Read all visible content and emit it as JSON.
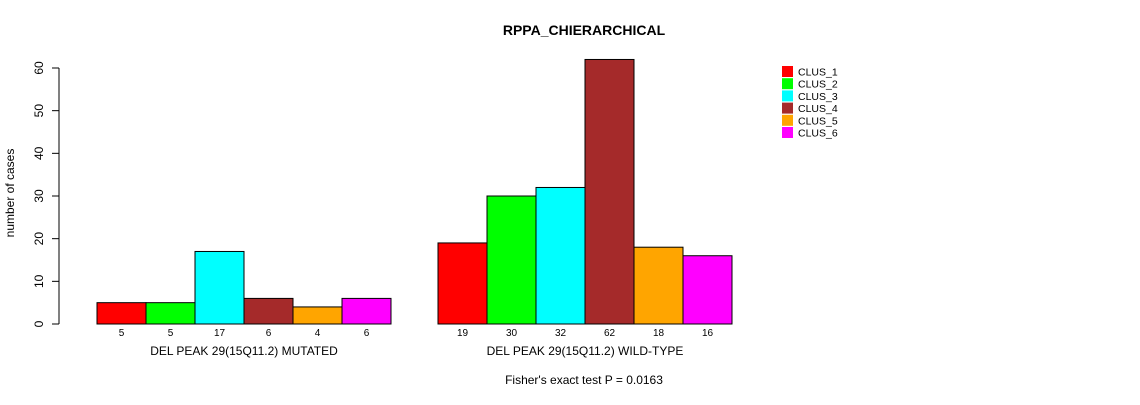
{
  "chart_data": {
    "type": "bar",
    "title": "RPPA_CHIERARCHICAL",
    "ylabel": "number of cases",
    "ylim": [
      0,
      60
    ],
    "yticks": [
      0,
      10,
      20,
      30,
      40,
      50,
      60
    ],
    "legend_position": "top-right",
    "footer": "Fisher's exact test P = 0.0163",
    "series": [
      {
        "name": "CLUS_1",
        "color": "#FF0000"
      },
      {
        "name": "CLUS_2",
        "color": "#00FF00"
      },
      {
        "name": "CLUS_3",
        "color": "#00FFFF"
      },
      {
        "name": "CLUS_4",
        "color": "#A52A2A"
      },
      {
        "name": "CLUS_5",
        "color": "#FFA500"
      },
      {
        "name": "CLUS_6",
        "color": "#FF00FF"
      }
    ],
    "groups": [
      {
        "label": "DEL PEAK 29(15Q11.2) MUTATED",
        "values": [
          5,
          5,
          17,
          6,
          4,
          6
        ]
      },
      {
        "label": "DEL PEAK 29(15Q11.2) WILD-TYPE",
        "values": [
          19,
          30,
          32,
          62,
          18,
          16
        ]
      }
    ]
  }
}
